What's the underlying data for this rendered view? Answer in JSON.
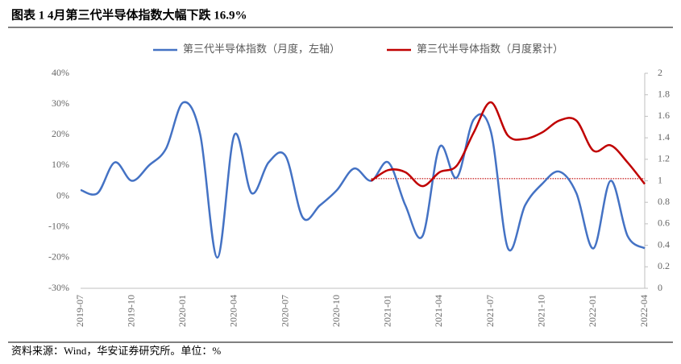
{
  "chart_data": {
    "type": "line",
    "title": "图表 1 4月第三代半导体指数大幅下跌 16.9%",
    "source": "资料来源：Wind，华安证券研究所。单位：%",
    "categories": [
      "2019-07",
      null,
      null,
      "2019-10",
      null,
      null,
      "2020-01",
      null,
      null,
      "2020-04",
      null,
      null,
      "2020-07",
      null,
      null,
      "2020-10",
      null,
      null,
      "2021-01",
      null,
      null,
      "2021-04",
      null,
      null,
      "2021-07",
      null,
      null,
      "2021-10",
      null,
      null,
      "2022-01",
      null,
      null,
      "2022-04"
    ],
    "series": [
      {
        "name": "第三代半导体指数（月度，左轴）",
        "color": "#4472c4",
        "axis": "y",
        "values": [
          2,
          1,
          11,
          5,
          10,
          15.5,
          30.5,
          20,
          -20,
          20,
          1,
          11,
          13,
          -7,
          -3,
          2,
          9,
          5,
          11,
          -3,
          -13,
          16,
          6,
          25,
          21,
          -17,
          -3,
          4,
          8,
          1,
          -17,
          5,
          -13,
          -17
        ]
      },
      {
        "name": "第三代半导体指数（月度累计）",
        "color": "#c00000",
        "axis": "y2",
        "values": [
          null,
          null,
          null,
          null,
          null,
          null,
          null,
          null,
          null,
          null,
          null,
          null,
          null,
          null,
          null,
          null,
          null,
          1.0,
          1.1,
          1.08,
          0.95,
          1.08,
          1.14,
          1.45,
          1.73,
          1.42,
          1.39,
          1.45,
          1.56,
          1.56,
          1.28,
          1.33,
          1.17,
          0.97
        ]
      }
    ],
    "reference_line": {
      "value": 1.02,
      "axis": "y2",
      "color": "#c00000"
    },
    "ylim": [
      -30,
      40
    ],
    "yticks": [
      {
        "value": -30,
        "label": "-30%"
      },
      {
        "value": -20,
        "label": "-20%"
      },
      {
        "value": -10,
        "label": "-10%"
      },
      {
        "value": 0,
        "label": "0%"
      },
      {
        "value": 10,
        "label": "10%"
      },
      {
        "value": 20,
        "label": "20%"
      },
      {
        "value": 30,
        "label": "30%"
      },
      {
        "value": 40,
        "label": "40%"
      }
    ],
    "y2lim": [
      0,
      2
    ],
    "y2ticks": [
      0,
      0.2,
      0.4,
      0.6,
      0.8,
      1,
      1.2,
      1.4,
      1.6,
      1.8,
      2
    ],
    "legend": "top"
  }
}
